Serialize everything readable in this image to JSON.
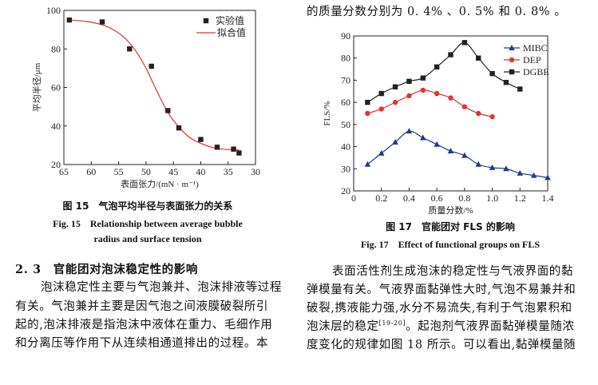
{
  "right_top_line": "的质量分数分别为 0. 4% 、0. 5% 和 0. 8% 。",
  "fig15": {
    "caption_zh": "图 15　气泡平均半径与表面张力的关系",
    "caption_en_1": "Fig. 15　Relationship between average bubble",
    "caption_en_2": "radius and surface tension"
  },
  "fig17": {
    "caption_zh": "图 17　官能团对 FLS 的影响",
    "caption_en": "Fig. 17　Effect of functional groups on FLS"
  },
  "section": {
    "heading": "2. 3　官能团对泡沫稳定性的影响",
    "left_lines": [
      "泡沫稳定性主要与气泡兼并、泡沫排液等过程",
      "有关。气泡兼并主要是因气泡之间液膜破裂所引",
      "起的,泡沫排液是指泡沫中液体在重力、毛细作用",
      "和分离压等作用下从连续相通道排出的过程。本"
    ],
    "right_lines": [
      "表面活性剂生成泡沫的稳定性与气液界面的黏",
      "弹模量有关。气液界面黏弹性大时,气泡不易兼并和",
      "破裂,携液能力强,水分不易流失,有利于气泡累积和",
      "泡沫层的稳定",
      "[19-20]",
      "。起泡剂气液界面黏弹模量随浓",
      "度变化的规律如图 18 所示。可以看出,黏弹模量随"
    ]
  },
  "chart_data": [
    {
      "type": "scatter",
      "xlabel": "表面张力/(mN · m⁻¹)",
      "ylabel": "平均半径/μm",
      "xlim": [
        65,
        30
      ],
      "ylim": [
        20,
        100
      ],
      "x_reversed": true,
      "xticks": [
        "65",
        "60",
        "55",
        "50",
        "45",
        "40",
        "35",
        "30"
      ],
      "yticks": [
        "20",
        "40",
        "60",
        "80",
        "100"
      ],
      "legend_position": "top-right",
      "series": [
        {
          "name": "实验值",
          "kind": "points",
          "color": "#222222",
          "x": [
            64,
            58,
            53,
            49,
            46,
            44,
            40,
            37,
            34,
            33
          ],
          "y": [
            95,
            94,
            80,
            71,
            48,
            39,
            33,
            29,
            28,
            26
          ]
        },
        {
          "name": "拟合值",
          "kind": "line",
          "color": "#e03030",
          "x": [
            64,
            61,
            58,
            56,
            54,
            52,
            50,
            48,
            46,
            44,
            42,
            40,
            38,
            36,
            34,
            33
          ],
          "y": [
            95,
            94.3,
            92.5,
            90,
            86,
            79.5,
            70,
            58,
            47,
            39.5,
            34,
            31,
            29,
            28,
            27.7,
            27.5
          ]
        }
      ]
    },
    {
      "type": "line",
      "xlabel": "质量分数/%",
      "ylabel": "FLS/%",
      "xlim": [
        0,
        1.4
      ],
      "ylim": [
        20,
        90
      ],
      "xticks": [
        "0",
        "0.2",
        "0.4",
        "0.6",
        "0.8",
        "1.0",
        "1.2",
        "1.4"
      ],
      "yticks": [
        "20",
        "30",
        "40",
        "50",
        "60",
        "70",
        "80",
        "90"
      ],
      "legend_position": "top-right",
      "series": [
        {
          "name": "MIBC",
          "marker": "triangle",
          "color": "#1f3a93",
          "x": [
            0.1,
            0.2,
            0.3,
            0.4,
            0.5,
            0.6,
            0.7,
            0.8,
            0.9,
            1.0,
            1.1,
            1.2,
            1.3,
            1.4
          ],
          "y": [
            32,
            37,
            42,
            47,
            44,
            41,
            38,
            36,
            32,
            30.5,
            30,
            28,
            27,
            26
          ]
        },
        {
          "name": "DEP",
          "marker": "circle",
          "color": "#e83030",
          "x": [
            0.1,
            0.2,
            0.3,
            0.4,
            0.5,
            0.6,
            0.7,
            0.8,
            0.9,
            1.0
          ],
          "y": [
            55,
            57,
            60,
            63,
            65.5,
            64,
            62,
            58,
            55,
            53.5
          ]
        },
        {
          "name": "DGBE",
          "marker": "square",
          "color": "#222222",
          "x": [
            0.1,
            0.2,
            0.3,
            0.4,
            0.5,
            0.6,
            0.7,
            0.8,
            0.9,
            1.0,
            1.1,
            1.2
          ],
          "y": [
            60,
            64,
            67,
            69.5,
            71,
            76,
            81.5,
            87,
            80,
            73,
            69,
            66
          ]
        }
      ]
    }
  ]
}
